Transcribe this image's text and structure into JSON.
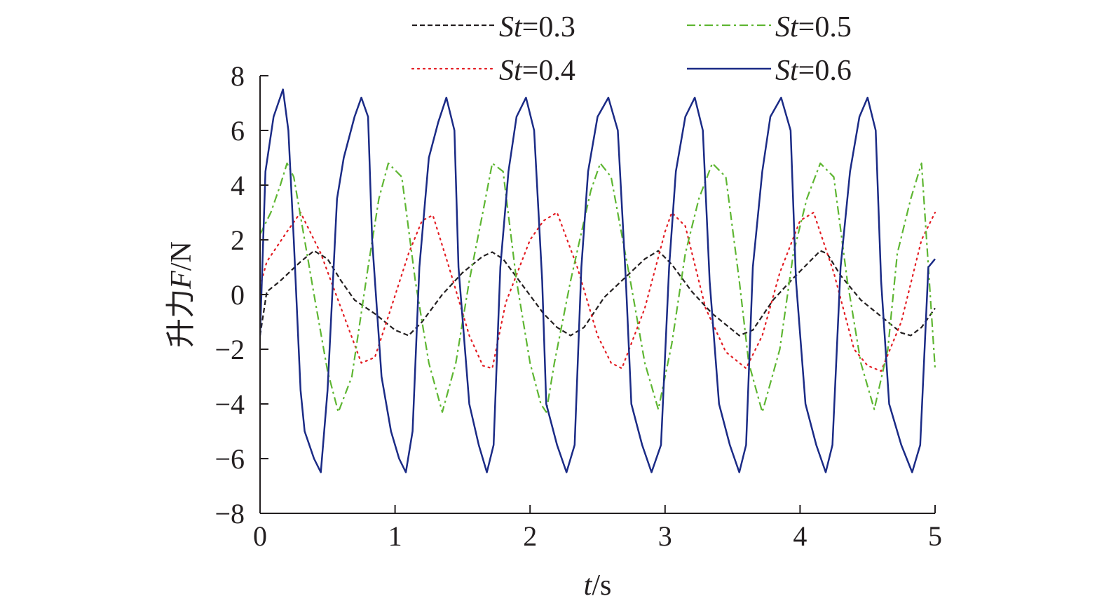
{
  "chart_data": {
    "type": "line",
    "xlabel": "t/s",
    "ylabel": "升力F/N",
    "xlim": [
      0,
      5
    ],
    "ylim": [
      -8,
      8
    ],
    "xticks": [
      "0",
      "1",
      "2",
      "3",
      "4",
      "5"
    ],
    "yticks": [
      "8",
      "6",
      "4",
      "2",
      "0",
      "−2",
      "−4",
      "−6",
      "−8"
    ],
    "legend_position": "top",
    "series": [
      {
        "name": "St=0.3",
        "color": "#231f20",
        "dash": "dashed",
        "x": [
          0,
          0.05,
          0.15,
          0.3,
          0.4,
          0.5,
          0.6,
          0.7,
          0.85,
          1.0,
          1.1,
          1.2,
          1.35,
          1.5,
          1.65,
          1.72,
          1.8,
          1.95,
          2.1,
          2.2,
          2.3,
          2.4,
          2.55,
          2.7,
          2.85,
          2.95,
          3.05,
          3.2,
          3.35,
          3.5,
          3.55,
          3.65,
          3.8,
          3.95,
          4.05,
          4.15,
          4.2,
          4.3,
          4.45,
          4.6,
          4.75,
          4.82,
          4.9,
          5.0
        ],
        "y": [
          -1.5,
          0.1,
          0.5,
          1.2,
          1.6,
          1.3,
          0.5,
          -0.2,
          -0.7,
          -1.3,
          -1.5,
          -1.0,
          0.0,
          0.8,
          1.4,
          1.55,
          1.3,
          0.3,
          -0.7,
          -1.2,
          -1.5,
          -1.2,
          -0.1,
          0.6,
          1.3,
          1.6,
          1.1,
          0.1,
          -0.7,
          -1.3,
          -1.5,
          -1.3,
          -0.2,
          0.6,
          1.1,
          1.6,
          1.5,
          0.7,
          -0.2,
          -0.8,
          -1.4,
          -1.5,
          -1.2,
          -0.5
        ]
      },
      {
        "name": "St=0.4",
        "color": "#e31e24",
        "dash": "dotted",
        "x": [
          0,
          0.05,
          0.2,
          0.3,
          0.45,
          0.6,
          0.75,
          0.85,
          0.95,
          1.1,
          1.2,
          1.28,
          1.4,
          1.55,
          1.65,
          1.72,
          1.82,
          2.0,
          2.1,
          2.2,
          2.35,
          2.5,
          2.6,
          2.68,
          2.85,
          3.0,
          3.05,
          3.15,
          3.3,
          3.45,
          3.6,
          3.72,
          3.85,
          4.0,
          4.1,
          4.25,
          4.4,
          4.5,
          4.6,
          4.75,
          4.9,
          5.0
        ],
        "y": [
          0.3,
          1.2,
          2.3,
          3.0,
          1.5,
          -0.5,
          -2.5,
          -2.3,
          -0.8,
          1.5,
          2.7,
          2.9,
          1.0,
          -1.5,
          -2.6,
          -2.7,
          -0.3,
          2.0,
          2.7,
          3.0,
          1.0,
          -1.5,
          -2.5,
          -2.7,
          -0.5,
          2.3,
          3.0,
          2.5,
          -0.5,
          -2.1,
          -2.7,
          -1.5,
          0.8,
          2.7,
          3.0,
          0.8,
          -2.0,
          -2.6,
          -2.8,
          -1.0,
          2.0,
          3.0
        ]
      },
      {
        "name": "St=0.5",
        "color": "#5eb632",
        "dash": "dashdot",
        "x": [
          0,
          0.08,
          0.15,
          0.2,
          0.25,
          0.4,
          0.5,
          0.58,
          0.68,
          0.8,
          0.88,
          0.95,
          1.05,
          1.15,
          1.25,
          1.35,
          1.45,
          1.55,
          1.65,
          1.72,
          1.8,
          1.9,
          2.0,
          2.08,
          2.12,
          2.18,
          2.3,
          2.45,
          2.52,
          2.6,
          2.75,
          2.85,
          2.95,
          3.05,
          3.15,
          3.25,
          3.35,
          3.45,
          3.55,
          3.62,
          3.72,
          3.85,
          3.95,
          4.05,
          4.15,
          4.25,
          4.35,
          4.45,
          4.55,
          4.65,
          4.72,
          4.82,
          4.9,
          5.0
        ],
        "y": [
          2.2,
          3.0,
          4.0,
          4.8,
          4.3,
          0.0,
          -2.8,
          -4.3,
          -3.0,
          1.0,
          3.5,
          4.8,
          4.3,
          0.5,
          -2.5,
          -4.3,
          -2.5,
          0.5,
          3.0,
          4.8,
          4.5,
          0.5,
          -2.5,
          -4.0,
          -4.3,
          -2.5,
          0.5,
          3.8,
          4.8,
          4.3,
          0.3,
          -2.5,
          -4.2,
          -1.8,
          1.5,
          3.5,
          4.8,
          4.3,
          0.5,
          -2.5,
          -4.3,
          -2.0,
          1.5,
          3.5,
          4.8,
          4.3,
          0.5,
          -2.5,
          -4.2,
          -2.0,
          1.5,
          3.5,
          4.8,
          -2.7
        ]
      },
      {
        "name": "St=0.6",
        "color": "#1b2b86",
        "dash": "solid",
        "x": [
          0,
          0.04,
          0.1,
          0.17,
          0.21,
          0.25,
          0.3,
          0.33,
          0.4,
          0.45,
          0.5,
          0.57,
          0.62,
          0.7,
          0.75,
          0.8,
          0.83,
          0.9,
          0.97,
          1.03,
          1.08,
          1.13,
          1.18,
          1.25,
          1.32,
          1.38,
          1.44,
          1.47,
          1.55,
          1.62,
          1.68,
          1.73,
          1.78,
          1.84,
          1.9,
          1.97,
          2.03,
          2.09,
          2.12,
          2.2,
          2.27,
          2.33,
          2.38,
          2.43,
          2.5,
          2.58,
          2.65,
          2.71,
          2.75,
          2.83,
          2.9,
          2.97,
          3.03,
          3.08,
          3.15,
          3.22,
          3.28,
          3.33,
          3.4,
          3.48,
          3.55,
          3.6,
          3.65,
          3.72,
          3.78,
          3.86,
          3.93,
          3.97,
          4.04,
          4.12,
          4.19,
          4.24,
          4.3,
          4.37,
          4.44,
          4.5,
          4.56,
          4.6,
          4.66,
          4.75,
          4.83,
          4.89,
          4.95,
          5.0
        ],
        "y": [
          -1.5,
          4.5,
          6.5,
          7.5,
          6.0,
          2.0,
          -3.5,
          -5.0,
          -6.0,
          -6.5,
          -3.5,
          3.5,
          5.0,
          6.5,
          7.2,
          6.5,
          2.0,
          -3.0,
          -5.0,
          -6.0,
          -6.5,
          -5.0,
          1.0,
          5.0,
          6.3,
          7.2,
          6.0,
          1.0,
          -4.0,
          -5.5,
          -6.5,
          -5.5,
          1.0,
          4.5,
          6.5,
          7.2,
          6.0,
          0.5,
          -4.0,
          -5.5,
          -6.5,
          -5.5,
          1.0,
          4.5,
          6.5,
          7.2,
          6.0,
          0.5,
          -4.0,
          -5.5,
          -6.5,
          -5.5,
          1.0,
          4.5,
          6.5,
          7.2,
          6.0,
          0.5,
          -4.0,
          -5.5,
          -6.5,
          -5.5,
          1.0,
          4.5,
          6.5,
          7.2,
          6.0,
          0.5,
          -4.0,
          -5.5,
          -6.5,
          -5.5,
          1.0,
          4.5,
          6.5,
          7.2,
          6.0,
          0.5,
          -4.0,
          -5.5,
          -6.5,
          -5.5,
          1.0,
          1.3
        ]
      }
    ]
  }
}
